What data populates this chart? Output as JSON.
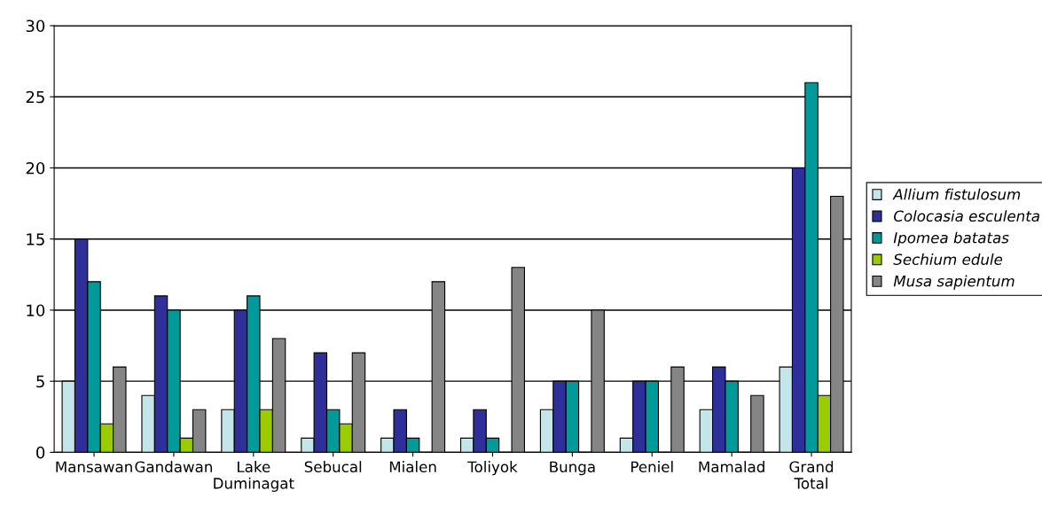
{
  "chart_data": {
    "type": "bar",
    "categories": [
      "Mansawan",
      "Gandawan",
      "Lake\nDuminagat",
      "Sebucal",
      "Mialen",
      "Toliyok",
      "Bunga",
      "Peniel",
      "Mamalad",
      "Grand\nTotal"
    ],
    "series": [
      {
        "name": "Allium fistulosum",
        "color": "#c4e6ea",
        "values": [
          5,
          4,
          3,
          1,
          1,
          1,
          3,
          1,
          3,
          6
        ]
      },
      {
        "name": "Colocasia esculenta",
        "color": "#2f2f9c",
        "values": [
          15,
          11,
          10,
          7,
          3,
          3,
          5,
          5,
          6,
          20
        ]
      },
      {
        "name": "Ipomea batatas",
        "color": "#009a9a",
        "values": [
          12,
          10,
          11,
          3,
          1,
          1,
          5,
          5,
          5,
          26
        ]
      },
      {
        "name": "Sechium edule",
        "color": "#9acc00",
        "values": [
          2,
          1,
          3,
          2,
          0,
          0,
          0,
          0,
          0,
          4
        ]
      },
      {
        "name": "Musa sapientum",
        "color": "#858585",
        "values": [
          6,
          3,
          8,
          7,
          12,
          13,
          10,
          6,
          4,
          18
        ]
      }
    ],
    "ylim": [
      0,
      30
    ],
    "yticks": [
      0,
      5,
      10,
      15,
      20,
      25,
      30
    ],
    "grid": "y",
    "legend": "right"
  }
}
